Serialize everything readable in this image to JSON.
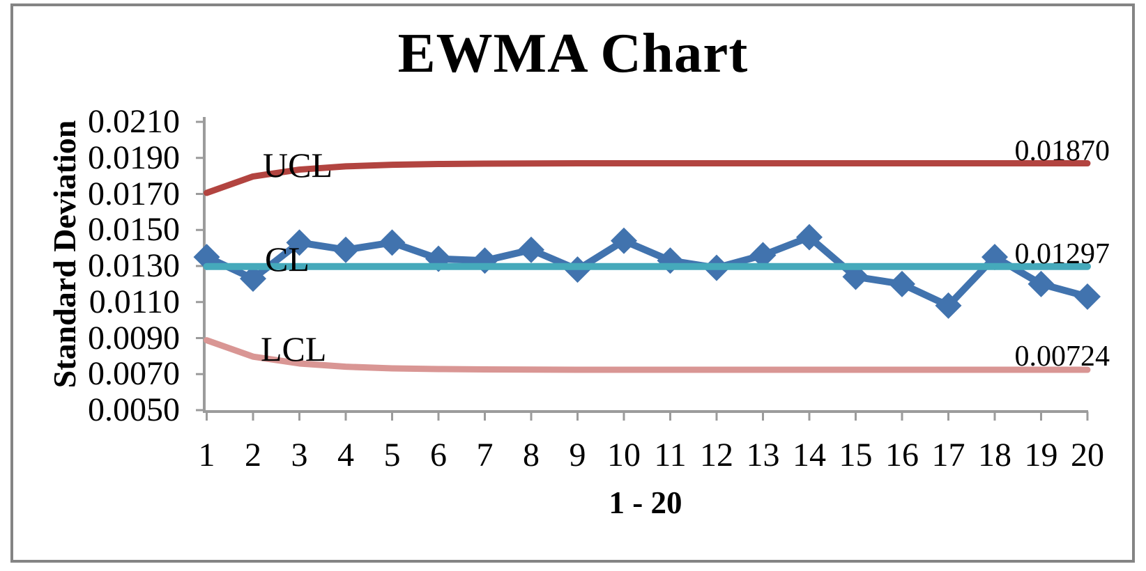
{
  "window": {
    "background_color": "#ffffff",
    "frame_border_color": "#848484"
  },
  "chart": {
    "title": "EWMA Chart",
    "y_axis_title": "Standard Deviation",
    "x_axis_title": "1 - 20",
    "labels": {
      "ucl": "UCL",
      "cl": "CL",
      "lcl": "LCL"
    },
    "annotations": {
      "ucl": "0.01870",
      "cl": "0.01297",
      "lcl": "0.00724"
    }
  },
  "chart_data": {
    "type": "line",
    "title": "EWMA Chart",
    "xlabel": "1 - 20",
    "ylabel": "Standard Deviation",
    "x": [
      1,
      2,
      3,
      4,
      5,
      6,
      7,
      8,
      9,
      10,
      11,
      12,
      13,
      14,
      15,
      16,
      17,
      18,
      19,
      20
    ],
    "x_tick_labels": [
      "1",
      "2",
      "3",
      "4",
      "5",
      "6",
      "7",
      "8",
      "9",
      "10",
      "11",
      "12",
      "13",
      "14",
      "15",
      "16",
      "17",
      "18",
      "19",
      "20"
    ],
    "y_tick_labels": [
      "0.0210",
      "0.0190",
      "0.0170",
      "0.0150",
      "0.0130",
      "0.0110",
      "0.0090",
      "0.0070",
      "0.0050"
    ],
    "ylim": [
      0.005,
      0.021
    ],
    "y_tick_step": 0.002,
    "grid": "off",
    "legend": "none",
    "axis_color": "#9B9B9B",
    "series": [
      {
        "name": "EWMA",
        "color": "#4173AE",
        "marker": "diamond",
        "line_width": 10,
        "values": [
          0.0135,
          0.0123,
          0.0143,
          0.0139,
          0.0143,
          0.0134,
          0.0133,
          0.0139,
          0.0128,
          0.0144,
          0.0133,
          0.0129,
          0.0136,
          0.0146,
          0.0124,
          0.012,
          0.0108,
          0.0135,
          0.012,
          0.0113
        ]
      },
      {
        "name": "LCL",
        "color": "#D99694",
        "marker": "none",
        "line_width": 9,
        "values": [
          0.00888,
          0.00797,
          0.00759,
          0.00741,
          0.00732,
          0.00728,
          0.00726,
          0.00725,
          0.00724,
          0.00724,
          0.00724,
          0.00724,
          0.00724,
          0.00724,
          0.00724,
          0.00724,
          0.00724,
          0.00724,
          0.00724,
          0.00724
        ]
      },
      {
        "name": "UCL",
        "color": "#B24440",
        "marker": "none",
        "line_width": 9,
        "values": [
          0.01706,
          0.01797,
          0.01835,
          0.01853,
          0.01862,
          0.01866,
          0.01868,
          0.01869,
          0.0187,
          0.0187,
          0.0187,
          0.0187,
          0.0187,
          0.0187,
          0.0187,
          0.0187,
          0.0187,
          0.0187,
          0.0187,
          0.0187
        ]
      },
      {
        "name": "CL",
        "color": "#45A9BB",
        "marker": "none",
        "line_width": 10,
        "values": [
          0.01297,
          0.01297,
          0.01297,
          0.01297,
          0.01297,
          0.01297,
          0.01297,
          0.01297,
          0.01297,
          0.01297,
          0.01297,
          0.01297,
          0.01297,
          0.01297,
          0.01297,
          0.01297,
          0.01297,
          0.01297,
          0.01297,
          0.01297
        ]
      }
    ],
    "end_labels": [
      {
        "series": "UCL",
        "text": "0.01870"
      },
      {
        "series": "CL",
        "text": "0.01297"
      },
      {
        "series": "LCL",
        "text": "0.00724"
      }
    ]
  }
}
